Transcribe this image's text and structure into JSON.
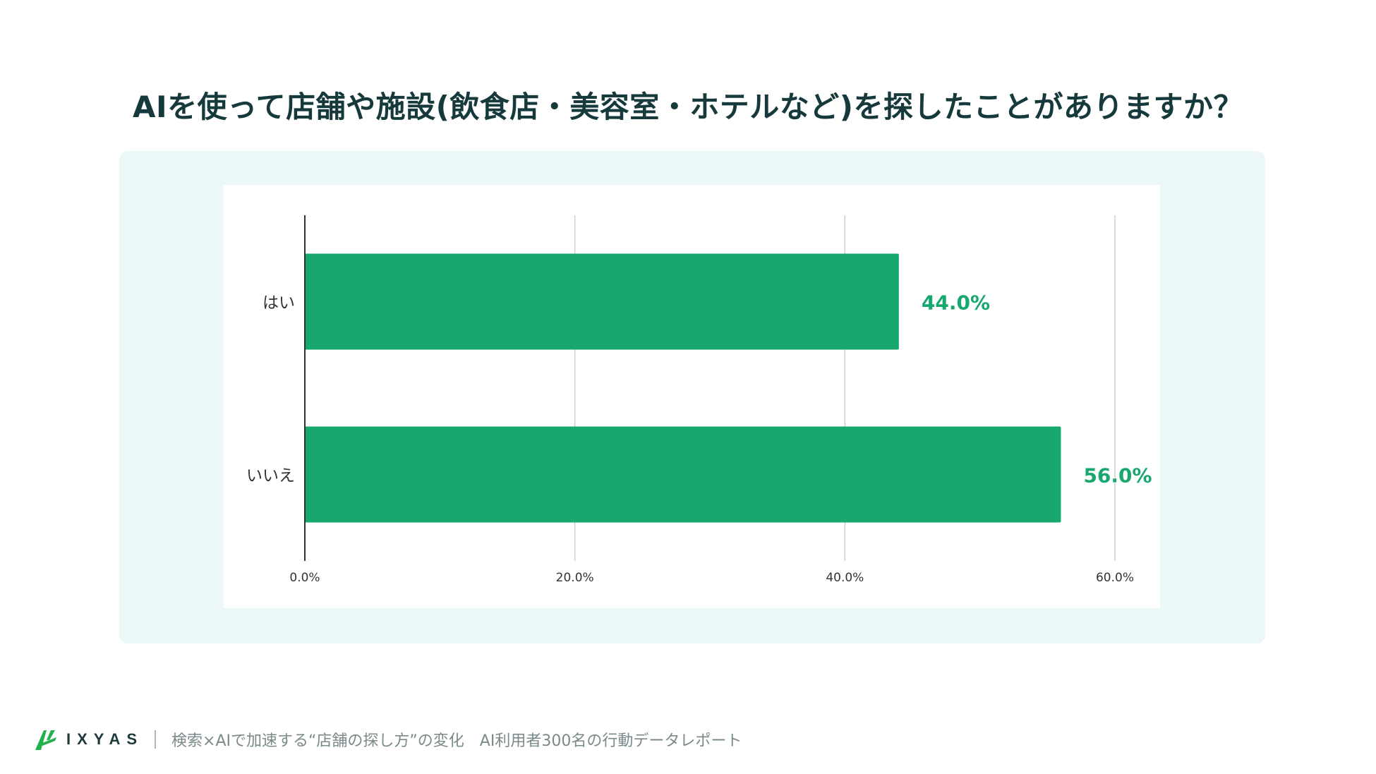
{
  "title": "AIを使って店舗や施設(飲食店・美容室・ホテルなど)を探したことがありますか？",
  "colors": {
    "bar": "#16a86e",
    "value_label": "#16a86e",
    "title": "#16393b",
    "panel_bg": "#ecf7f7",
    "grid": "#cfcfcf",
    "axis": "#333333"
  },
  "chart_data": {
    "type": "bar",
    "orientation": "horizontal",
    "categories": [
      "はい",
      "いいえ"
    ],
    "values": [
      44.0,
      56.0
    ],
    "value_labels": [
      "44.0%",
      "56.0%"
    ],
    "xlim": [
      0,
      60
    ],
    "xticks": [
      0,
      20,
      40,
      60
    ],
    "xtick_labels": [
      "0.0%",
      "20.0%",
      "40.0%",
      "60.0%"
    ],
    "grid": true,
    "legend": "none"
  },
  "footer": {
    "brand": "IXYAS",
    "logo_icon": "ixyas-logo-icon",
    "caption": "検索×AIで加速する“店舗の探し方”の変化　AI利用者300名の行動データレポート"
  }
}
